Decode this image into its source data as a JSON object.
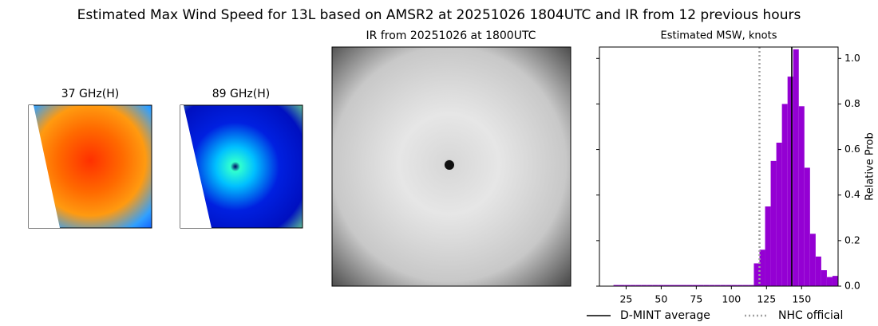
{
  "title": "Estimated Max Wind Speed for 13L based on AMSR2 at 20251026 1804UTC and IR from 12 previous hours",
  "panels": [
    {
      "title": "37 GHz(H)"
    },
    {
      "title": "89 GHz(H)"
    },
    {
      "title": "IR from 20251026 at 1800UTC"
    }
  ],
  "chart_data": {
    "type": "histogram",
    "title": "Estimated MSW, knots",
    "ylabel": "Relative Prob",
    "color": "#9400d3",
    "bins": [
      16,
      20,
      24,
      28,
      32,
      36,
      40,
      44,
      48,
      52,
      56,
      60,
      64,
      68,
      72,
      76,
      80,
      84,
      88,
      92,
      96,
      100,
      104,
      108,
      112,
      116,
      120,
      124,
      128,
      132,
      136,
      140,
      144,
      148,
      152,
      156,
      160,
      164,
      168,
      172,
      176
    ],
    "values": [
      0.005,
      0.005,
      0.005,
      0.005,
      0.005,
      0.005,
      0.005,
      0.005,
      0.005,
      0.005,
      0.005,
      0.005,
      0.005,
      0.005,
      0.005,
      0.005,
      0.005,
      0.005,
      0.005,
      0.005,
      0.005,
      0.005,
      0.005,
      0.005,
      0.005,
      0.1,
      0.16,
      0.35,
      0.55,
      0.63,
      0.8,
      0.92,
      1.04,
      0.79,
      0.52,
      0.23,
      0.13,
      0.07,
      0.04,
      0.045
    ],
    "xlim": [
      6,
      176
    ],
    "xticks": [
      25,
      50,
      75,
      100,
      125,
      150
    ],
    "ylim": [
      0,
      1.05
    ],
    "yticks": [
      {
        "value": 0,
        "label": "0.0"
      },
      0.2,
      0.4,
      0.6,
      0.8,
      {
        "value": 1,
        "label": "1.0"
      }
    ],
    "reference_lines": [
      {
        "name": "D-MINT average",
        "value": 143,
        "color": "#000000",
        "style": "solid"
      },
      {
        "name": "NHC official",
        "value": 120,
        "color": "#a0a0a0",
        "style": "dotted"
      }
    ]
  }
}
